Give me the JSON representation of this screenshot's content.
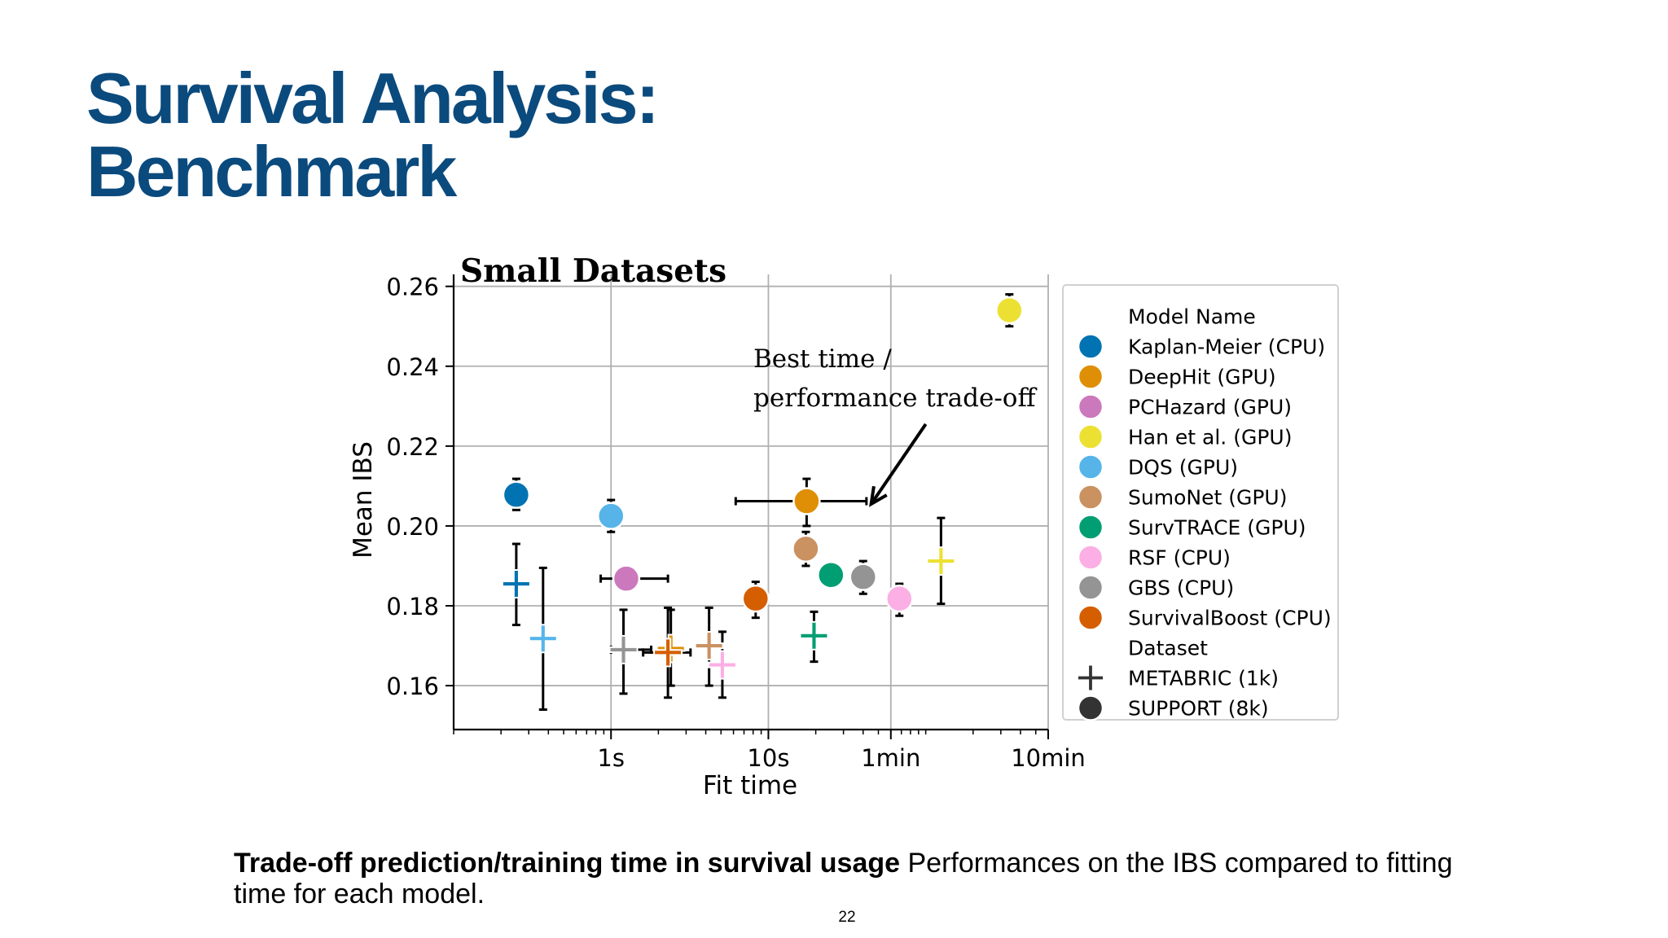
{
  "slide": {
    "title_line1": "Survival Analysis:",
    "title_line2": "Benchmark",
    "caption_bold": "Trade-off prediction/training time in survival usage",
    "caption_rest": " Performances on the IBS compared to fitting time for each model.",
    "page_number": "22"
  },
  "chart_data": {
    "type": "scatter",
    "title": "Small Datasets",
    "xlabel": "Fit time",
    "ylabel": "Mean IBS",
    "xscale": "log",
    "xlim_seconds": [
      0.1,
      600
    ],
    "ylim": [
      0.149,
      0.263
    ],
    "grid": true,
    "x_ticks": [
      {
        "value": 1,
        "label": "1s"
      },
      {
        "value": 10,
        "label": "10s"
      },
      {
        "value": 60,
        "label": "1min"
      },
      {
        "value": 600,
        "label": "10min"
      }
    ],
    "y_ticks": [
      {
        "value": 0.16,
        "label": "0.16"
      },
      {
        "value": 0.18,
        "label": "0.18"
      },
      {
        "value": 0.2,
        "label": "0.20"
      },
      {
        "value": 0.22,
        "label": "0.22"
      },
      {
        "value": 0.24,
        "label": "0.24"
      },
      {
        "value": 0.26,
        "label": "0.26"
      }
    ],
    "annotation": {
      "text_line1": "Best time /",
      "text_line2": "performance trade-off",
      "arrow_from": {
        "x": 100,
        "y": 0.2255
      },
      "arrow_to": {
        "x": 45,
        "y": 0.2055
      }
    },
    "legend": {
      "placement": "outside right",
      "model_heading": "Model Name",
      "dataset_heading": "Dataset",
      "dataset_entries": [
        {
          "label": "METABRIC (1k)",
          "marker": "plus"
        },
        {
          "label": "SUPPORT (8k)",
          "marker": "circle"
        }
      ]
    },
    "series": [
      {
        "name": "Kaplan-Meier (CPU)",
        "color": "#0173b2",
        "points": [
          {
            "dataset": "SUPPORT (8k)",
            "x": 0.25,
            "y": 0.2078,
            "y_err": [
              0.204,
              0.2118
            ]
          },
          {
            "dataset": "METABRIC (1k)",
            "x": 0.25,
            "y": 0.1855,
            "y_err": [
              0.1752,
              0.1955
            ]
          }
        ]
      },
      {
        "name": "DeepHit (GPU)",
        "color": "#de8f05",
        "points": [
          {
            "dataset": "SUPPORT (8k)",
            "x": 17.5,
            "y": 0.2062,
            "y_err": [
              0.2,
              0.2118
            ],
            "x_err": [
              6.2,
              42
            ]
          },
          {
            "dataset": "METABRIC (1k)",
            "x": 2.4,
            "y": 0.1693,
            "y_err": [
              0.16,
              0.179
            ]
          }
        ]
      },
      {
        "name": "PCHazard (GPU)",
        "color": "#cc78bc",
        "points": [
          {
            "dataset": "SUPPORT (8k)",
            "x": 1.25,
            "y": 0.1868,
            "x_err": [
              0.86,
              2.3
            ]
          }
        ]
      },
      {
        "name": "Han et al. (GPU)",
        "color": "#ece133",
        "points": [
          {
            "dataset": "SUPPORT (8k)",
            "x": 340,
            "y": 0.254,
            "y_err": [
              0.25,
              0.258
            ]
          },
          {
            "dataset": "METABRIC (1k)",
            "x": 125,
            "y": 0.1912,
            "y_err": [
              0.1805,
              0.202
            ]
          }
        ]
      },
      {
        "name": "DQS (GPU)",
        "color": "#56b4e9",
        "points": [
          {
            "dataset": "SUPPORT (8k)",
            "x": 1.0,
            "y": 0.2025,
            "y_err": [
              0.1985,
              0.2065
            ]
          },
          {
            "dataset": "METABRIC (1k)",
            "x": 0.37,
            "y": 0.1718,
            "y_err": [
              0.154,
              0.1895
            ]
          }
        ]
      },
      {
        "name": "SumoNet (GPU)",
        "color": "#ca9161",
        "points": [
          {
            "dataset": "SUPPORT (8k)",
            "x": 17.3,
            "y": 0.1943,
            "y_err": [
              0.19,
              0.1985
            ]
          },
          {
            "dataset": "METABRIC (1k)",
            "x": 4.2,
            "y": 0.17,
            "y_err": [
              0.16,
              0.1795
            ]
          }
        ]
      },
      {
        "name": "SurvTRACE (GPU)",
        "color": "#029e73",
        "points": [
          {
            "dataset": "SUPPORT (8k)",
            "x": 25,
            "y": 0.1877,
            "y_err": [
              0.185,
              0.1905
            ]
          },
          {
            "dataset": "METABRIC (1k)",
            "x": 19.5,
            "y": 0.1725,
            "y_err": [
              0.166,
              0.1785
            ]
          }
        ]
      },
      {
        "name": "RSF (CPU)",
        "color": "#fbafe4",
        "points": [
          {
            "dataset": "SUPPORT (8k)",
            "x": 68,
            "y": 0.1818,
            "y_err": [
              0.1775,
              0.1855
            ]
          },
          {
            "dataset": "METABRIC (1k)",
            "x": 5.1,
            "y": 0.1652,
            "y_err": [
              0.157,
              0.1735
            ]
          }
        ]
      },
      {
        "name": "GBS (CPU)",
        "color": "#949494",
        "points": [
          {
            "dataset": "SUPPORT (8k)",
            "x": 40,
            "y": 0.1872,
            "y_err": [
              0.183,
              0.1912
            ]
          },
          {
            "dataset": "METABRIC (1k)",
            "x": 1.2,
            "y": 0.169,
            "y_err": [
              0.158,
              0.179
            ],
            "x_err": [
              1.0,
              1.8
            ]
          }
        ]
      },
      {
        "name": "SurvivalBoost (CPU)",
        "color": "#d55e00",
        "points": [
          {
            "dataset": "SUPPORT (8k)",
            "x": 8.3,
            "y": 0.1818,
            "y_err": [
              0.177,
              0.186
            ]
          },
          {
            "dataset": "METABRIC (1k)",
            "x": 2.3,
            "y": 0.1683,
            "y_err": [
              0.157,
              0.1795
            ],
            "x_err": [
              1.6,
              3.2
            ]
          }
        ]
      }
    ]
  }
}
